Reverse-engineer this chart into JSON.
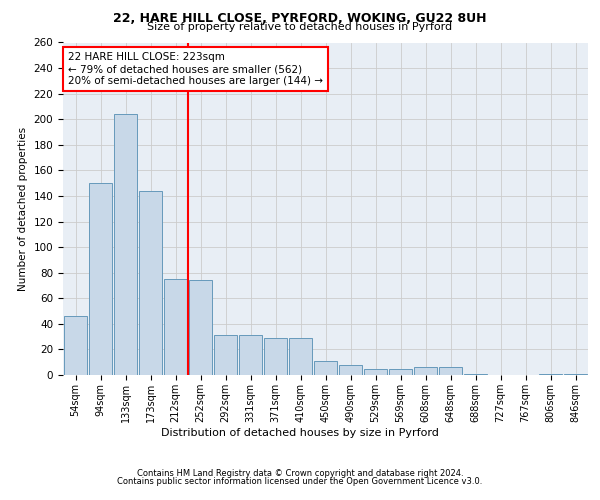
{
  "title1": "22, HARE HILL CLOSE, PYRFORD, WOKING, GU22 8UH",
  "title2": "Size of property relative to detached houses in Pyrford",
  "xlabel": "Distribution of detached houses by size in Pyrford",
  "ylabel": "Number of detached properties",
  "categories": [
    "54sqm",
    "94sqm",
    "133sqm",
    "173sqm",
    "212sqm",
    "252sqm",
    "292sqm",
    "331sqm",
    "371sqm",
    "410sqm",
    "450sqm",
    "490sqm",
    "529sqm",
    "569sqm",
    "608sqm",
    "648sqm",
    "688sqm",
    "727sqm",
    "767sqm",
    "806sqm",
    "846sqm"
  ],
  "values": [
    46,
    150,
    204,
    144,
    75,
    74,
    31,
    31,
    29,
    29,
    11,
    8,
    5,
    5,
    6,
    6,
    1,
    0,
    0,
    1,
    1
  ],
  "bar_color": "#c8d8e8",
  "bar_edge_color": "#6699bb",
  "annotation_line1": "22 HARE HILL CLOSE: 223sqm",
  "annotation_line2": "← 79% of detached houses are smaller (562)",
  "annotation_line3": "20% of semi-detached houses are larger (144) →",
  "annotation_box_color": "white",
  "annotation_box_edge_color": "red",
  "red_line_x": 4.5,
  "ylim": [
    0,
    260
  ],
  "yticks": [
    0,
    20,
    40,
    60,
    80,
    100,
    120,
    140,
    160,
    180,
    200,
    220,
    240,
    260
  ],
  "grid_color": "#cccccc",
  "bg_color": "#e8eef5",
  "footer1": "Contains HM Land Registry data © Crown copyright and database right 2024.",
  "footer2": "Contains public sector information licensed under the Open Government Licence v3.0."
}
